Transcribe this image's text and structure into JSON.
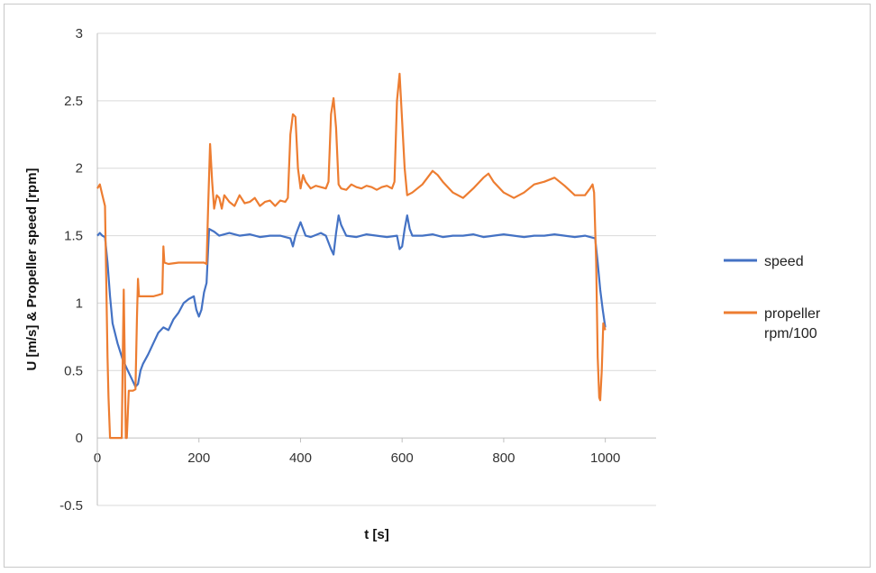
{
  "chart_data": {
    "type": "line",
    "xlabel": "t [s]",
    "ylabel": "U [m/s] & Propeller speed [rpm]",
    "xlim": [
      0,
      1100
    ],
    "ylim": [
      -0.5,
      3
    ],
    "xticks": [
      0,
      200,
      400,
      600,
      800,
      1000
    ],
    "yticks": [
      -0.5,
      0,
      0.5,
      1,
      1.5,
      2,
      2.5,
      3
    ],
    "grid": "horizontal",
    "legend_position": "right",
    "series": [
      {
        "name": "speed",
        "color": "#4472C4",
        "points": [
          [
            0,
            1.5
          ],
          [
            5,
            1.52
          ],
          [
            10,
            1.5
          ],
          [
            15,
            1.49
          ],
          [
            20,
            1.3
          ],
          [
            25,
            1.05
          ],
          [
            30,
            0.85
          ],
          [
            40,
            0.7
          ],
          [
            50,
            0.58
          ],
          [
            60,
            0.5
          ],
          [
            70,
            0.42
          ],
          [
            75,
            0.38
          ],
          [
            80,
            0.4
          ],
          [
            85,
            0.5
          ],
          [
            90,
            0.55
          ],
          [
            100,
            0.62
          ],
          [
            110,
            0.7
          ],
          [
            120,
            0.78
          ],
          [
            130,
            0.82
          ],
          [
            140,
            0.8
          ],
          [
            150,
            0.88
          ],
          [
            160,
            0.93
          ],
          [
            170,
            1.0
          ],
          [
            180,
            1.03
          ],
          [
            190,
            1.05
          ],
          [
            195,
            0.95
          ],
          [
            200,
            0.9
          ],
          [
            205,
            0.95
          ],
          [
            210,
            1.08
          ],
          [
            215,
            1.15
          ],
          [
            220,
            1.55
          ],
          [
            230,
            1.53
          ],
          [
            240,
            1.5
          ],
          [
            260,
            1.52
          ],
          [
            280,
            1.5
          ],
          [
            300,
            1.51
          ],
          [
            320,
            1.49
          ],
          [
            340,
            1.5
          ],
          [
            360,
            1.5
          ],
          [
            380,
            1.48
          ],
          [
            385,
            1.42
          ],
          [
            390,
            1.5
          ],
          [
            395,
            1.55
          ],
          [
            400,
            1.6
          ],
          [
            405,
            1.55
          ],
          [
            410,
            1.5
          ],
          [
            420,
            1.49
          ],
          [
            440,
            1.52
          ],
          [
            450,
            1.5
          ],
          [
            460,
            1.4
          ],
          [
            465,
            1.36
          ],
          [
            470,
            1.52
          ],
          [
            475,
            1.65
          ],
          [
            480,
            1.58
          ],
          [
            490,
            1.5
          ],
          [
            510,
            1.49
          ],
          [
            530,
            1.51
          ],
          [
            550,
            1.5
          ],
          [
            570,
            1.49
          ],
          [
            590,
            1.5
          ],
          [
            595,
            1.4
          ],
          [
            600,
            1.42
          ],
          [
            605,
            1.55
          ],
          [
            610,
            1.65
          ],
          [
            615,
            1.55
          ],
          [
            620,
            1.5
          ],
          [
            640,
            1.5
          ],
          [
            660,
            1.51
          ],
          [
            680,
            1.49
          ],
          [
            700,
            1.5
          ],
          [
            720,
            1.5
          ],
          [
            740,
            1.51
          ],
          [
            760,
            1.49
          ],
          [
            780,
            1.5
          ],
          [
            800,
            1.51
          ],
          [
            820,
            1.5
          ],
          [
            840,
            1.49
          ],
          [
            860,
            1.5
          ],
          [
            880,
            1.5
          ],
          [
            900,
            1.51
          ],
          [
            920,
            1.5
          ],
          [
            940,
            1.49
          ],
          [
            960,
            1.5
          ],
          [
            980,
            1.48
          ],
          [
            985,
            1.3
          ],
          [
            990,
            1.1
          ],
          [
            995,
            0.95
          ],
          [
            1000,
            0.82
          ]
        ]
      },
      {
        "name": "propeller rpm/100",
        "color": "#ED7D31",
        "points": [
          [
            0,
            1.85
          ],
          [
            5,
            1.88
          ],
          [
            10,
            1.8
          ],
          [
            15,
            1.72
          ],
          [
            20,
            0.6
          ],
          [
            22,
            0.3
          ],
          [
            25,
            0.0
          ],
          [
            30,
            0.0
          ],
          [
            40,
            0.0
          ],
          [
            48,
            0.0
          ],
          [
            50,
            0.6
          ],
          [
            52,
            1.1
          ],
          [
            54,
            0.6
          ],
          [
            56,
            0.0
          ],
          [
            58,
            0.0
          ],
          [
            62,
            0.35
          ],
          [
            70,
            0.35
          ],
          [
            75,
            0.36
          ],
          [
            78,
            0.9
          ],
          [
            80,
            1.18
          ],
          [
            82,
            1.05
          ],
          [
            90,
            1.05
          ],
          [
            100,
            1.05
          ],
          [
            110,
            1.05
          ],
          [
            120,
            1.06
          ],
          [
            128,
            1.07
          ],
          [
            130,
            1.42
          ],
          [
            132,
            1.3
          ],
          [
            140,
            1.29
          ],
          [
            160,
            1.3
          ],
          [
            180,
            1.3
          ],
          [
            200,
            1.3
          ],
          [
            210,
            1.3
          ],
          [
            215,
            1.29
          ],
          [
            218,
            1.7
          ],
          [
            222,
            2.18
          ],
          [
            226,
            1.9
          ],
          [
            230,
            1.7
          ],
          [
            235,
            1.8
          ],
          [
            240,
            1.78
          ],
          [
            245,
            1.7
          ],
          [
            250,
            1.8
          ],
          [
            260,
            1.75
          ],
          [
            270,
            1.72
          ],
          [
            280,
            1.8
          ],
          [
            290,
            1.74
          ],
          [
            300,
            1.75
          ],
          [
            310,
            1.78
          ],
          [
            320,
            1.72
          ],
          [
            330,
            1.75
          ],
          [
            340,
            1.76
          ],
          [
            350,
            1.72
          ],
          [
            360,
            1.76
          ],
          [
            370,
            1.75
          ],
          [
            375,
            1.78
          ],
          [
            380,
            2.25
          ],
          [
            385,
            2.4
          ],
          [
            390,
            2.38
          ],
          [
            395,
            2.0
          ],
          [
            400,
            1.85
          ],
          [
            405,
            1.95
          ],
          [
            410,
            1.9
          ],
          [
            420,
            1.85
          ],
          [
            430,
            1.87
          ],
          [
            440,
            1.86
          ],
          [
            450,
            1.85
          ],
          [
            455,
            1.9
          ],
          [
            460,
            2.4
          ],
          [
            465,
            2.52
          ],
          [
            470,
            2.3
          ],
          [
            475,
            1.88
          ],
          [
            480,
            1.85
          ],
          [
            490,
            1.84
          ],
          [
            500,
            1.88
          ],
          [
            510,
            1.86
          ],
          [
            520,
            1.85
          ],
          [
            530,
            1.87
          ],
          [
            540,
            1.86
          ],
          [
            550,
            1.84
          ],
          [
            560,
            1.86
          ],
          [
            570,
            1.87
          ],
          [
            580,
            1.85
          ],
          [
            585,
            1.9
          ],
          [
            590,
            2.5
          ],
          [
            595,
            2.7
          ],
          [
            600,
            2.35
          ],
          [
            605,
            2.0
          ],
          [
            610,
            1.8
          ],
          [
            620,
            1.82
          ],
          [
            640,
            1.88
          ],
          [
            660,
            1.98
          ],
          [
            670,
            1.95
          ],
          [
            680,
            1.9
          ],
          [
            700,
            1.82
          ],
          [
            720,
            1.78
          ],
          [
            740,
            1.85
          ],
          [
            760,
            1.93
          ],
          [
            770,
            1.96
          ],
          [
            780,
            1.9
          ],
          [
            800,
            1.82
          ],
          [
            820,
            1.78
          ],
          [
            840,
            1.82
          ],
          [
            860,
            1.88
          ],
          [
            880,
            1.9
          ],
          [
            900,
            1.93
          ],
          [
            920,
            1.87
          ],
          [
            940,
            1.8
          ],
          [
            960,
            1.8
          ],
          [
            970,
            1.85
          ],
          [
            975,
            1.88
          ],
          [
            978,
            1.82
          ],
          [
            982,
            1.3
          ],
          [
            985,
            0.6
          ],
          [
            988,
            0.3
          ],
          [
            990,
            0.28
          ],
          [
            993,
            0.5
          ],
          [
            996,
            0.85
          ],
          [
            1000,
            0.8
          ]
        ]
      }
    ]
  }
}
